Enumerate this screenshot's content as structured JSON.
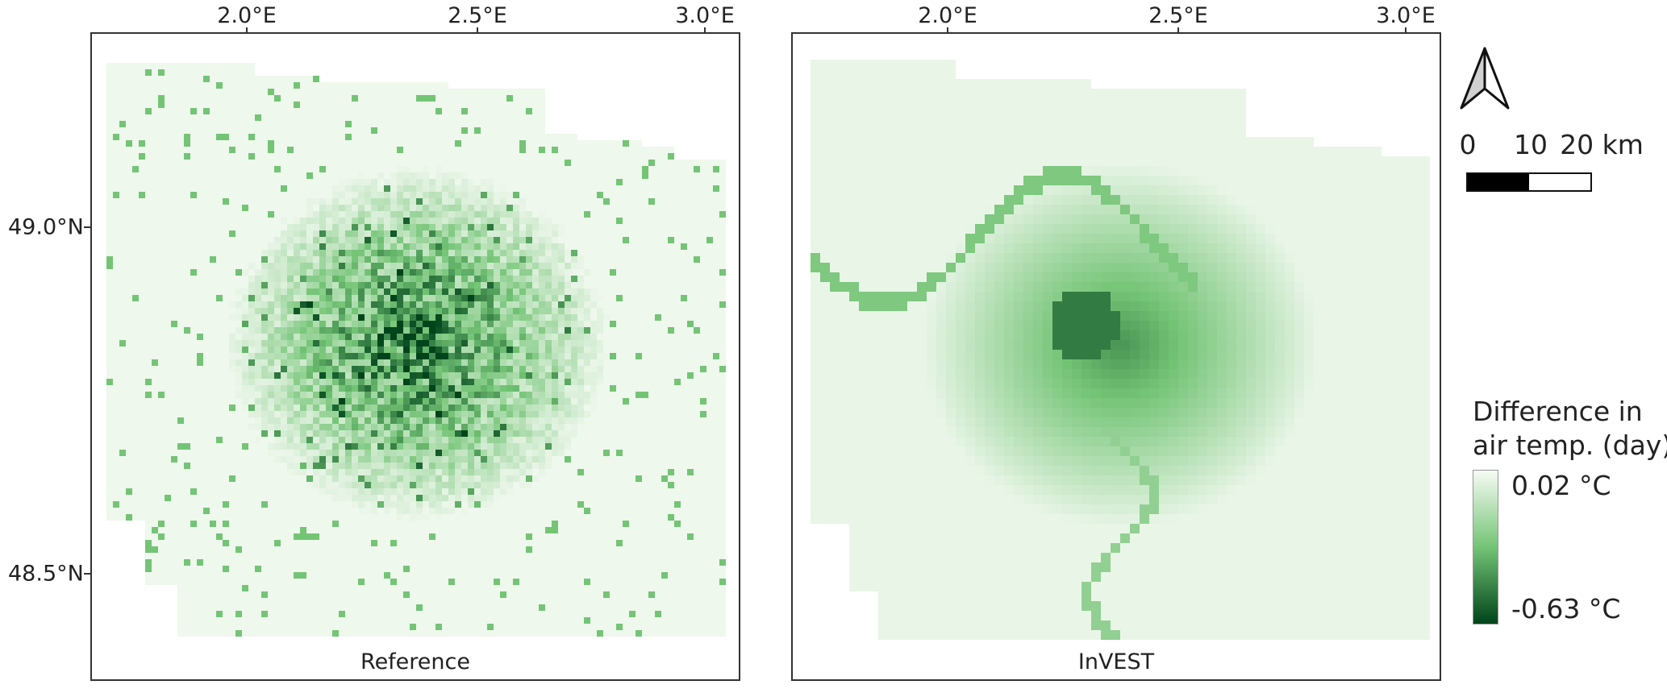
{
  "maps": [
    {
      "caption": "Reference"
    },
    {
      "caption": "InVEST"
    }
  ],
  "axes": {
    "lon_ticks": [
      "2.0°E",
      "2.5°E",
      "3.0°E"
    ],
    "lat_ticks": [
      "49.0°N",
      "48.5°N"
    ]
  },
  "scalebar": {
    "labels": [
      "0",
      "10",
      "20 km"
    ],
    "colors": [
      "#000000",
      "#ffffff"
    ]
  },
  "legend": {
    "title_line1": "Difference in",
    "title_line2": "air temp. (day)",
    "max_label": "0.02 °C",
    "min_label": "-0.63 °C",
    "color_light": "#f6fbf4",
    "color_dark": "#00441b"
  },
  "north_arrow_icon": "north-arrow-icon"
}
